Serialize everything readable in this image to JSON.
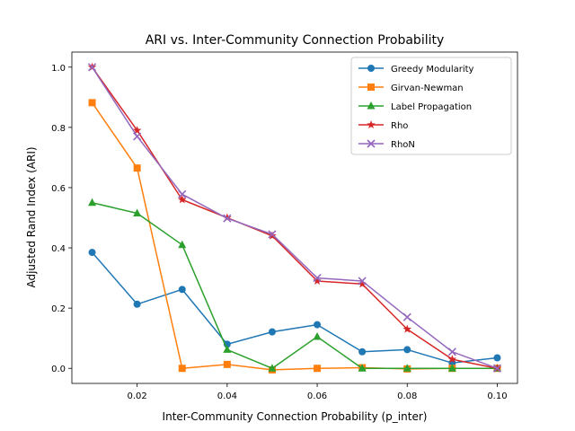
{
  "chart_data": {
    "type": "line",
    "title": "ARI vs. Inter-Community Connection Probability",
    "xlabel": "Inter-Community Connection Probability (p_inter)",
    "ylabel": "Adjusted Rand Index (ARI)",
    "xlim": [
      0.0055,
      0.1045
    ],
    "ylim": [
      -0.05,
      1.05
    ],
    "x": [
      0.01,
      0.02,
      0.03,
      0.04,
      0.05,
      0.06,
      0.07,
      0.08,
      0.09,
      0.1
    ],
    "xticks": [
      0.02,
      0.04,
      0.06,
      0.08,
      0.1
    ],
    "xtick_labels": [
      "0.02",
      "0.04",
      "0.06",
      "0.08",
      "0.10"
    ],
    "yticks": [
      0.0,
      0.2,
      0.4,
      0.6,
      0.8,
      1.0
    ],
    "ytick_labels": [
      "0.0",
      "0.2",
      "0.4",
      "0.6",
      "0.8",
      "1.0"
    ],
    "grid": false,
    "legend_position": "top-right",
    "series": [
      {
        "name": "Greedy Modularity",
        "color": "#1f77b4",
        "marker": "circle",
        "values": [
          0.385,
          0.213,
          0.262,
          0.08,
          0.121,
          0.145,
          0.055,
          0.062,
          0.018,
          0.035
        ]
      },
      {
        "name": "Girvan-Newman",
        "color": "#ff7f0e",
        "marker": "square",
        "values": [
          0.882,
          0.665,
          0.0,
          0.013,
          -0.005,
          0.0,
          0.002,
          -0.002,
          0.0,
          0.0
        ]
      },
      {
        "name": "Label Propagation",
        "color": "#2ca02c",
        "marker": "triangle",
        "values": [
          0.55,
          0.515,
          0.41,
          0.062,
          0.0,
          0.105,
          0.0,
          0.0,
          0.0,
          0.0
        ]
      },
      {
        "name": "Rho",
        "color": "#d62728",
        "marker": "star",
        "values": [
          1.0,
          0.79,
          0.56,
          0.5,
          0.44,
          0.29,
          0.28,
          0.13,
          0.03,
          0.0
        ]
      },
      {
        "name": "RhoN",
        "color": "#9467bd",
        "marker": "x",
        "values": [
          1.0,
          0.77,
          0.578,
          0.498,
          0.445,
          0.3,
          0.29,
          0.17,
          0.055,
          0.0
        ]
      }
    ]
  }
}
